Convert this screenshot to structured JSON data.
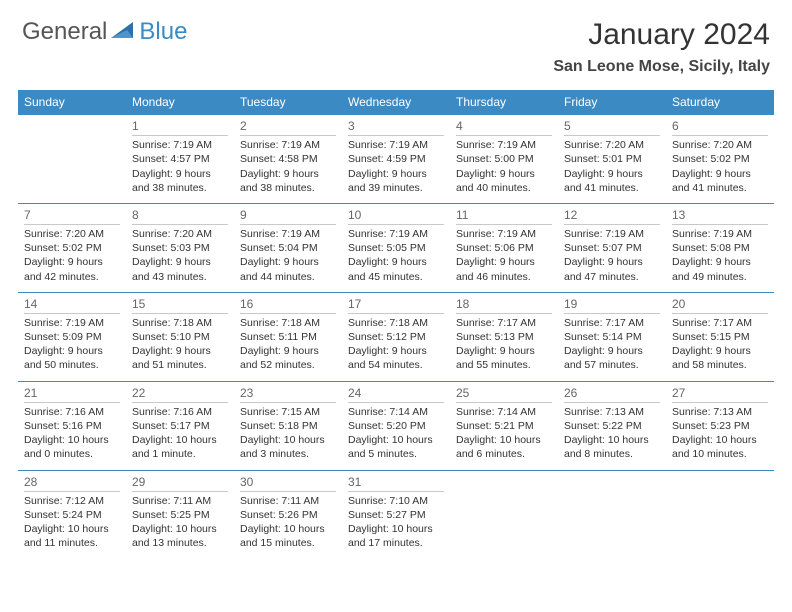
{
  "brand": {
    "part1": "General",
    "part2": "Blue"
  },
  "title": "January 2024",
  "location": "San Leone Mose, Sicily, Italy",
  "colors": {
    "header_bg": "#3b8ac4",
    "rule": "#3b8ac4",
    "daynum_rule": "#c9c9c9",
    "text": "#333333",
    "brand_gray": "#555555",
    "brand_blue": "#3b8ac4"
  },
  "day_headers": [
    "Sunday",
    "Monday",
    "Tuesday",
    "Wednesday",
    "Thursday",
    "Friday",
    "Saturday"
  ],
  "weeks": [
    [
      null,
      {
        "n": "1",
        "sunrise": "7:19 AM",
        "sunset": "4:57 PM",
        "daylight": "9 hours and 38 minutes."
      },
      {
        "n": "2",
        "sunrise": "7:19 AM",
        "sunset": "4:58 PM",
        "daylight": "9 hours and 38 minutes."
      },
      {
        "n": "3",
        "sunrise": "7:19 AM",
        "sunset": "4:59 PM",
        "daylight": "9 hours and 39 minutes."
      },
      {
        "n": "4",
        "sunrise": "7:19 AM",
        "sunset": "5:00 PM",
        "daylight": "9 hours and 40 minutes."
      },
      {
        "n": "5",
        "sunrise": "7:20 AM",
        "sunset": "5:01 PM",
        "daylight": "9 hours and 41 minutes."
      },
      {
        "n": "6",
        "sunrise": "7:20 AM",
        "sunset": "5:02 PM",
        "daylight": "9 hours and 41 minutes."
      }
    ],
    [
      {
        "n": "7",
        "sunrise": "7:20 AM",
        "sunset": "5:02 PM",
        "daylight": "9 hours and 42 minutes."
      },
      {
        "n": "8",
        "sunrise": "7:20 AM",
        "sunset": "5:03 PM",
        "daylight": "9 hours and 43 minutes."
      },
      {
        "n": "9",
        "sunrise": "7:19 AM",
        "sunset": "5:04 PM",
        "daylight": "9 hours and 44 minutes."
      },
      {
        "n": "10",
        "sunrise": "7:19 AM",
        "sunset": "5:05 PM",
        "daylight": "9 hours and 45 minutes."
      },
      {
        "n": "11",
        "sunrise": "7:19 AM",
        "sunset": "5:06 PM",
        "daylight": "9 hours and 46 minutes."
      },
      {
        "n": "12",
        "sunrise": "7:19 AM",
        "sunset": "5:07 PM",
        "daylight": "9 hours and 47 minutes."
      },
      {
        "n": "13",
        "sunrise": "7:19 AM",
        "sunset": "5:08 PM",
        "daylight": "9 hours and 49 minutes."
      }
    ],
    [
      {
        "n": "14",
        "sunrise": "7:19 AM",
        "sunset": "5:09 PM",
        "daylight": "9 hours and 50 minutes."
      },
      {
        "n": "15",
        "sunrise": "7:18 AM",
        "sunset": "5:10 PM",
        "daylight": "9 hours and 51 minutes."
      },
      {
        "n": "16",
        "sunrise": "7:18 AM",
        "sunset": "5:11 PM",
        "daylight": "9 hours and 52 minutes."
      },
      {
        "n": "17",
        "sunrise": "7:18 AM",
        "sunset": "5:12 PM",
        "daylight": "9 hours and 54 minutes."
      },
      {
        "n": "18",
        "sunrise": "7:17 AM",
        "sunset": "5:13 PM",
        "daylight": "9 hours and 55 minutes."
      },
      {
        "n": "19",
        "sunrise": "7:17 AM",
        "sunset": "5:14 PM",
        "daylight": "9 hours and 57 minutes."
      },
      {
        "n": "20",
        "sunrise": "7:17 AM",
        "sunset": "5:15 PM",
        "daylight": "9 hours and 58 minutes."
      }
    ],
    [
      {
        "n": "21",
        "sunrise": "7:16 AM",
        "sunset": "5:16 PM",
        "daylight": "10 hours and 0 minutes."
      },
      {
        "n": "22",
        "sunrise": "7:16 AM",
        "sunset": "5:17 PM",
        "daylight": "10 hours and 1 minute."
      },
      {
        "n": "23",
        "sunrise": "7:15 AM",
        "sunset": "5:18 PM",
        "daylight": "10 hours and 3 minutes."
      },
      {
        "n": "24",
        "sunrise": "7:14 AM",
        "sunset": "5:20 PM",
        "daylight": "10 hours and 5 minutes."
      },
      {
        "n": "25",
        "sunrise": "7:14 AM",
        "sunset": "5:21 PM",
        "daylight": "10 hours and 6 minutes."
      },
      {
        "n": "26",
        "sunrise": "7:13 AM",
        "sunset": "5:22 PM",
        "daylight": "10 hours and 8 minutes."
      },
      {
        "n": "27",
        "sunrise": "7:13 AM",
        "sunset": "5:23 PM",
        "daylight": "10 hours and 10 minutes."
      }
    ],
    [
      {
        "n": "28",
        "sunrise": "7:12 AM",
        "sunset": "5:24 PM",
        "daylight": "10 hours and 11 minutes."
      },
      {
        "n": "29",
        "sunrise": "7:11 AM",
        "sunset": "5:25 PM",
        "daylight": "10 hours and 13 minutes."
      },
      {
        "n": "30",
        "sunrise": "7:11 AM",
        "sunset": "5:26 PM",
        "daylight": "10 hours and 15 minutes."
      },
      {
        "n": "31",
        "sunrise": "7:10 AM",
        "sunset": "5:27 PM",
        "daylight": "10 hours and 17 minutes."
      },
      null,
      null,
      null
    ]
  ],
  "labels": {
    "sunrise": "Sunrise:",
    "sunset": "Sunset:",
    "daylight": "Daylight:"
  }
}
